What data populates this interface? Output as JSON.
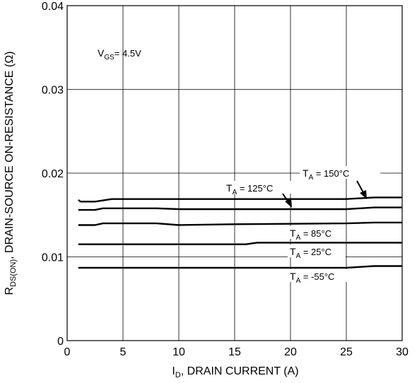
{
  "chart_data": {
    "type": "line",
    "xlabel": {
      "main": "I",
      "sub": "D",
      "rest": ", DRAIN CURRENT (A)"
    },
    "ylabel": {
      "main": "R",
      "sub": "DS(ON)",
      "rest": ", DRAIN-SOURCE ON-RESISTANCE (Ω)"
    },
    "xlim": [
      0,
      30
    ],
    "ylim": [
      0,
      0.04
    ],
    "xticks": [
      0,
      5,
      10,
      15,
      20,
      25,
      30
    ],
    "xtick_labels": [
      "0",
      "5",
      "10",
      "15",
      "20",
      "25",
      "30"
    ],
    "yticks": [
      0,
      0.01,
      0.02,
      0.03,
      0.04
    ],
    "ytick_labels": [
      "0",
      "0.01",
      "0.02",
      "0.03",
      "0.04"
    ],
    "grid": true,
    "series": [
      {
        "name": "T_A = 150°C",
        "x": [
          1,
          1.2,
          2.5,
          4,
          8,
          15,
          25,
          27.5,
          30
        ],
        "values": [
          0.0168,
          0.0166,
          0.0166,
          0.0169,
          0.0169,
          0.0169,
          0.0169,
          0.0171,
          0.0171
        ]
      },
      {
        "name": "T_A = 125°C",
        "x": [
          1,
          2.5,
          3.2,
          8,
          10,
          15,
          25,
          27.5,
          30
        ],
        "values": [
          0.0156,
          0.0156,
          0.0158,
          0.0158,
          0.0157,
          0.0157,
          0.0157,
          0.0159,
          0.0159
        ]
      },
      {
        "name": "T_A = 85°C",
        "x": [
          1,
          2.5,
          3.2,
          8,
          10,
          15,
          25,
          27.5,
          30
        ],
        "values": [
          0.0138,
          0.0138,
          0.014,
          0.014,
          0.0138,
          0.0139,
          0.014,
          0.0141,
          0.0141
        ]
      },
      {
        "name": "T_A = 25°C",
        "x": [
          1,
          10,
          16,
          17,
          25,
          30
        ],
        "values": [
          0.0115,
          0.0115,
          0.0115,
          0.0117,
          0.0117,
          0.0117
        ]
      },
      {
        "name": "T_A = -55°C",
        "x": [
          1,
          10,
          20,
          25,
          27.5,
          30
        ],
        "values": [
          0.0087,
          0.0087,
          0.0087,
          0.0087,
          0.0089,
          0.0089
        ]
      }
    ],
    "annotations": {
      "vgs": {
        "main": "V",
        "sub": "GS",
        "rest": "= 4.5V"
      },
      "t150": {
        "main": "T",
        "sub": "A",
        "rest": " = 150°C"
      },
      "t125": {
        "main": "T",
        "sub": "A",
        "rest": " = 125°C"
      },
      "t85": {
        "main": "T",
        "sub": "A",
        "rest": " = 85°C"
      },
      "t25": {
        "main": "T",
        "sub": "A",
        "rest": " = 25°C"
      },
      "tm55": {
        "main": "T",
        "sub": "A",
        "rest": " = -55°C"
      }
    }
  }
}
